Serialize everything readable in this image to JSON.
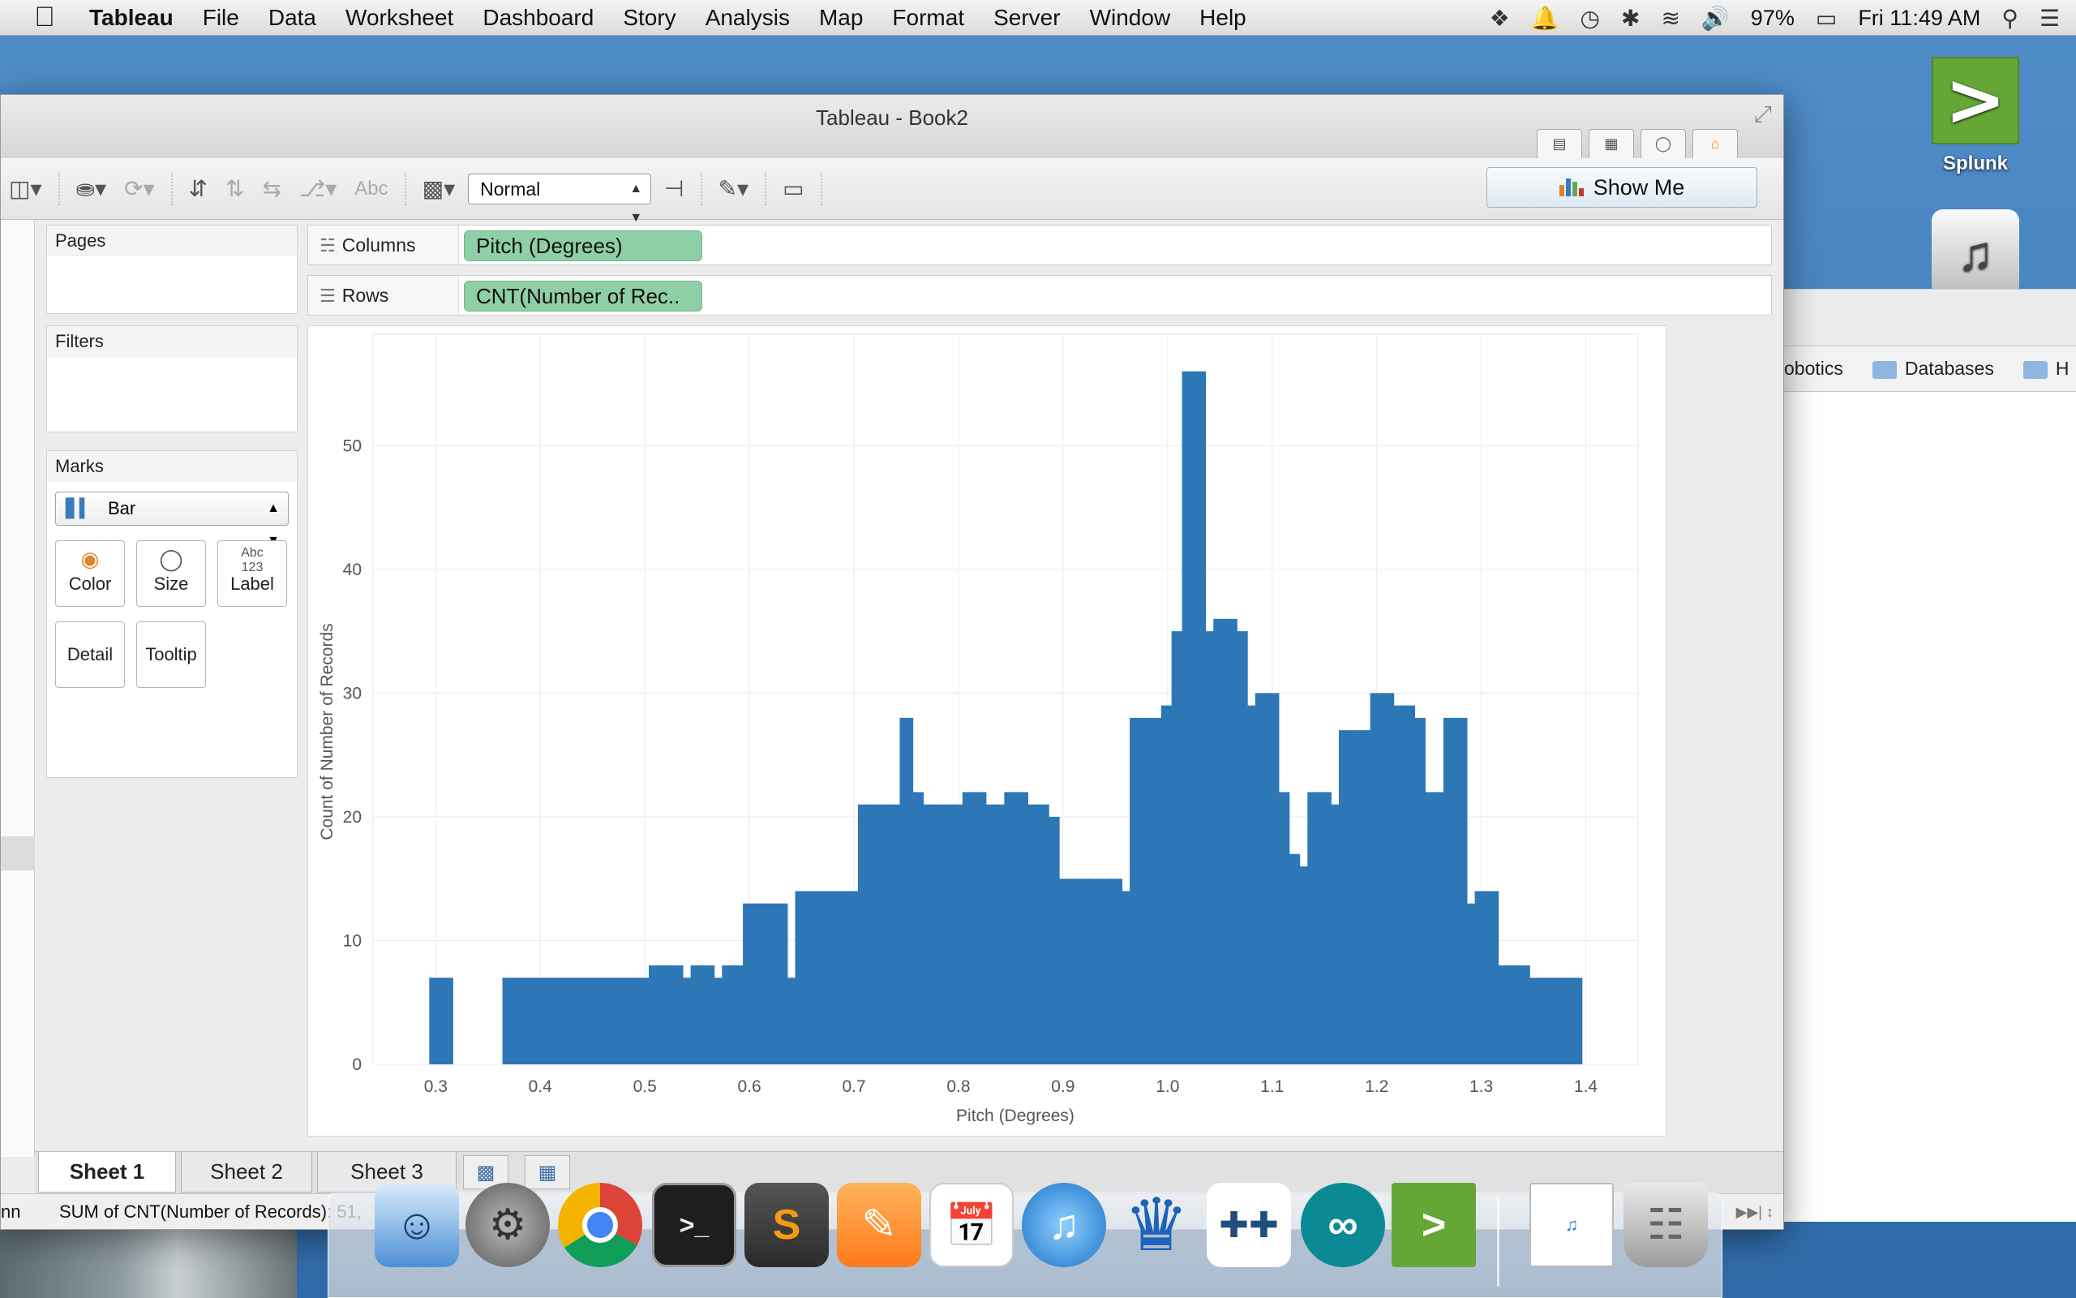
{
  "menubar": {
    "app_name": "Tableau",
    "items": [
      "File",
      "Data",
      "Worksheet",
      "Dashboard",
      "Story",
      "Analysis",
      "Map",
      "Format",
      "Server",
      "Window",
      "Help"
    ],
    "battery": "97%",
    "clock": "Fri 11:49 AM"
  },
  "desktop": {
    "splunk_label": "Splunk",
    "splunk_glyph": ">",
    "finder_items": [
      "obotics",
      "Databases",
      "H"
    ]
  },
  "window": {
    "title": "Tableau - Book2"
  },
  "toolbar": {
    "text_label": "Abc",
    "fit": "Normal",
    "show_me": "Show Me"
  },
  "cards": {
    "pages": "Pages",
    "filters": "Filters",
    "marks": "Marks",
    "mark_type": "Bar",
    "buttons": {
      "color": "Color",
      "size": "Size",
      "label": "Label",
      "detail": "Detail",
      "tooltip": "Tooltip"
    },
    "label_glyph_top": "Abc",
    "label_glyph_bottom": "123"
  },
  "shelves": {
    "columns_label": "Columns",
    "columns_pill": "Pitch (Degrees)",
    "rows_label": "Rows",
    "rows_pill": "CNT(Number of Rec.."
  },
  "chart_data": {
    "type": "bar",
    "xlabel": "Pitch (Degrees)",
    "ylabel": "Count of Number of Records",
    "xlim": [
      0.24,
      1.45
    ],
    "ylim": [
      0,
      59
    ],
    "xticks": [
      "0.3",
      "0.4",
      "0.5",
      "0.6",
      "0.7",
      "0.8",
      "0.9",
      "1.0",
      "1.1",
      "1.2",
      "1.3",
      "1.4"
    ],
    "yticks": [
      "0",
      "10",
      "20",
      "30",
      "40",
      "50"
    ],
    "bar_width": 0.0125,
    "color": "#2e77b6",
    "x": [
      0.3,
      0.31,
      0.37,
      0.38,
      0.39,
      0.4,
      0.41,
      0.42,
      0.43,
      0.44,
      0.45,
      0.46,
      0.47,
      0.48,
      0.49,
      0.5,
      0.51,
      0.52,
      0.53,
      0.54,
      0.55,
      0.56,
      0.57,
      0.58,
      0.59,
      0.6,
      0.61,
      0.62,
      0.63,
      0.64,
      0.65,
      0.66,
      0.67,
      0.68,
      0.69,
      0.7,
      0.71,
      0.72,
      0.73,
      0.74,
      0.75,
      0.76,
      0.77,
      0.78,
      0.79,
      0.8,
      0.81,
      0.82,
      0.83,
      0.84,
      0.85,
      0.86,
      0.87,
      0.88,
      0.89,
      0.9,
      0.91,
      0.92,
      0.93,
      0.94,
      0.95,
      0.96,
      0.97,
      0.98,
      0.99,
      1.0,
      1.01,
      1.02,
      1.03,
      1.04,
      1.05,
      1.06,
      1.07,
      1.08,
      1.09,
      1.1,
      1.11,
      1.12,
      1.13,
      1.14,
      1.15,
      1.16,
      1.17,
      1.18,
      1.19,
      1.2,
      1.21,
      1.22,
      1.23,
      1.24,
      1.25,
      1.26,
      1.27,
      1.28,
      1.29,
      1.3,
      1.31,
      1.32,
      1.33,
      1.34,
      1.35,
      1.36,
      1.37,
      1.38,
      1.39
    ],
    "values": [
      7,
      7,
      7,
      7,
      7,
      7,
      7,
      7,
      7,
      7,
      7,
      7,
      7,
      7,
      7,
      7,
      8,
      8,
      8,
      7,
      8,
      8,
      7,
      8,
      8,
      13,
      13,
      13,
      13,
      7,
      14,
      14,
      14,
      14,
      14,
      14,
      21,
      21,
      21,
      21,
      28,
      22,
      21,
      21,
      21,
      21,
      22,
      22,
      21,
      21,
      22,
      22,
      21,
      21,
      20,
      15,
      15,
      15,
      15,
      15,
      15,
      14,
      28,
      28,
      28,
      29,
      35,
      56,
      56,
      35,
      36,
      36,
      35,
      29,
      30,
      30,
      22,
      17,
      16,
      22,
      22,
      21,
      27,
      27,
      27,
      30,
      30,
      29,
      29,
      28,
      22,
      22,
      28,
      28,
      13,
      14,
      14,
      8,
      8,
      8,
      7,
      7,
      7,
      7,
      7
    ]
  },
  "tabs": {
    "sheets": [
      "Sheet 1",
      "Sheet 2",
      "Sheet 3"
    ]
  },
  "status": {
    "left_fragment": "nn",
    "summary": "SUM of CNT(Number of Records): 51,"
  }
}
